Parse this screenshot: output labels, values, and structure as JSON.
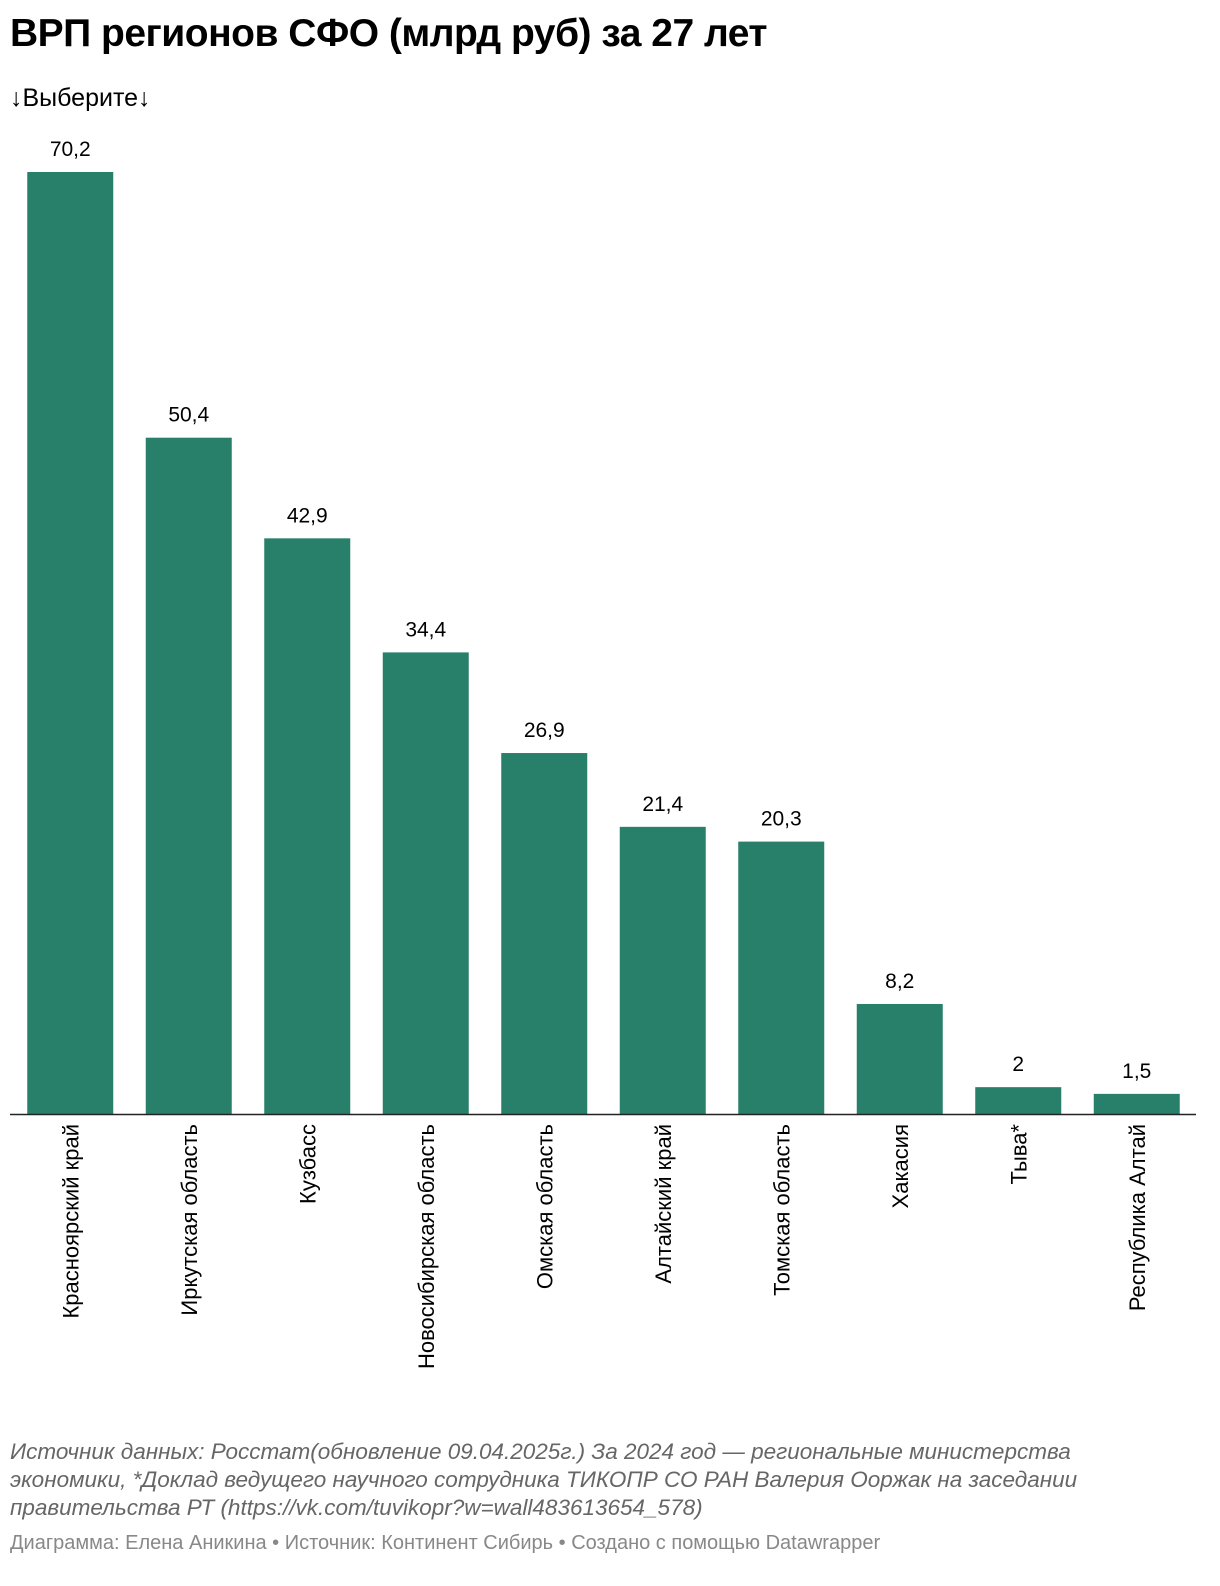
{
  "chart_data": {
    "type": "bar",
    "title": "ВРП регионов СФО (млрд руб) за 27 лет",
    "subtitle": "↓Выберите↓",
    "categories": [
      "Красноярский край",
      "Иркутская область",
      "Кузбасс",
      "Новосибирская область",
      "Омская область",
      "Алтайский край",
      "Томская область",
      "Хакасия",
      "Тыва*",
      "Республика Алтай"
    ],
    "values": [
      70.2,
      50.4,
      42.9,
      34.4,
      26.9,
      21.4,
      20.3,
      8.2,
      2,
      1.5
    ],
    "value_labels": [
      "70,2",
      "50,4",
      "42,9",
      "34,4",
      "26,9",
      "21,4",
      "20,3",
      "8,2",
      "2",
      "1,5"
    ],
    "color": "#29806a",
    "notes": "Источник данных: Росстат(обновление 09.04.2025г.) За 2024 год — региональные министерства экономики, *Доклад ведущего научного сотрудника ТИКОПР СО РАН Валерия Ооржак на заседании правительства РТ (https://vk.com/tuvikopr?w=wall483613654_578)",
    "byline": "Диаграмма: Елена Аникина • Источник: Континент Сибирь • Создано с помощью Datawrapper"
  }
}
